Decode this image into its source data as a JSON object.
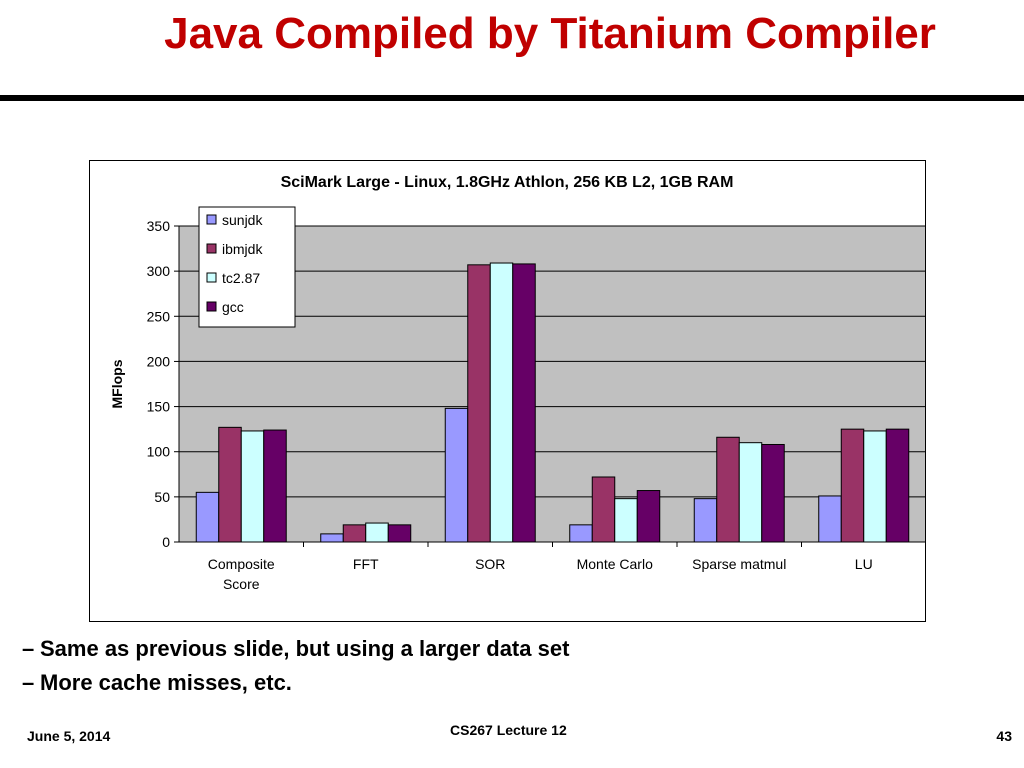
{
  "slide": {
    "title": "Java Compiled by Titanium Compiler",
    "bullets": [
      "Same as previous slide, but using a larger data set",
      "More cache misses, etc."
    ],
    "bullet_marker": "–",
    "footer": {
      "date": "June 5, 2014",
      "course": "CS267 Lecture 12",
      "page": "43"
    }
  },
  "chart_data": {
    "type": "bar",
    "title": "SciMark Large - Linux, 1.8GHz Athlon, 256 KB L2, 1GB RAM",
    "xlabel": "",
    "ylabel": "MFlops",
    "ylim": [
      0,
      350
    ],
    "yticks": [
      0,
      50,
      100,
      150,
      200,
      250,
      300,
      350
    ],
    "grid": true,
    "legend_position": "top-left",
    "categories": [
      [
        "Composite",
        "Score"
      ],
      [
        "FFT"
      ],
      [
        "SOR"
      ],
      [
        "Monte Carlo"
      ],
      [
        "Sparse matmul"
      ],
      [
        "LU"
      ]
    ],
    "series": [
      {
        "name": "sunjdk",
        "color": "#9999ff",
        "values": [
          55,
          9,
          148,
          19,
          48,
          51
        ]
      },
      {
        "name": "ibmjdk",
        "color": "#993366",
        "values": [
          127,
          19,
          307,
          72,
          116,
          125
        ]
      },
      {
        "name": "tc2.87",
        "color": "#ccffff",
        "values": [
          123,
          21,
          309,
          48,
          110,
          123
        ]
      },
      {
        "name": "gcc",
        "color": "#660066",
        "values": [
          124,
          19,
          308,
          57,
          108,
          125
        ]
      }
    ],
    "plot_background": "#c0c0c0"
  }
}
